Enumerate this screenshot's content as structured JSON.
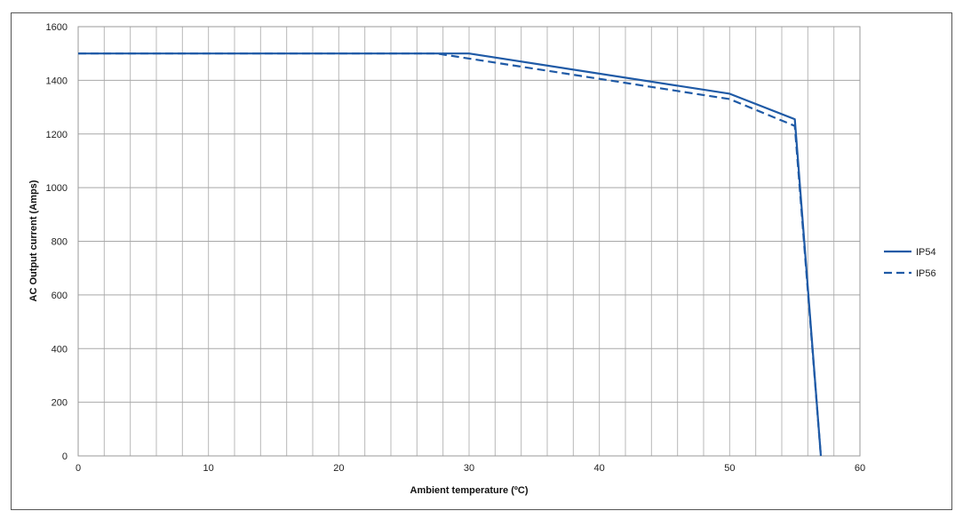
{
  "chart_data": {
    "type": "line",
    "xlabel": "Ambient temperature (ºC)",
    "ylabel": "AC Output current (Amps)",
    "xlim": [
      0,
      60
    ],
    "ylim": [
      0,
      1600
    ],
    "x_ticks": [
      0,
      10,
      20,
      30,
      40,
      50,
      60
    ],
    "y_ticks": [
      0,
      200,
      400,
      600,
      800,
      1000,
      1200,
      1400,
      1600
    ],
    "x_minor_step": 2,
    "grid": true,
    "legend_position": "right",
    "series": [
      {
        "name": "IP54",
        "style": "solid",
        "color": "#1f5aa6",
        "x": [
          0,
          30,
          50,
          55,
          57
        ],
        "y": [
          1500,
          1500,
          1350,
          1255,
          0
        ]
      },
      {
        "name": "IP56",
        "style": "dashed",
        "color": "#1f5aa6",
        "x": [
          0,
          27.5,
          50,
          55,
          57
        ],
        "y": [
          1500,
          1500,
          1330,
          1230,
          0
        ]
      }
    ]
  }
}
